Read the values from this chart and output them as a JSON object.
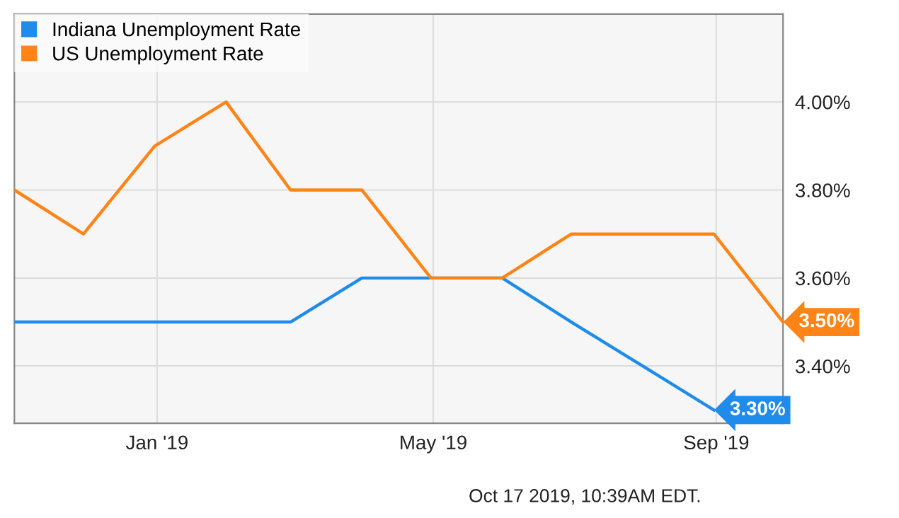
{
  "chart_data": {
    "type": "line",
    "x": [
      "2018-10-31",
      "2018-11-30",
      "2018-12-31",
      "2019-01-31",
      "2019-02-28",
      "2019-03-31",
      "2019-04-30",
      "2019-05-31",
      "2019-06-30",
      "2019-07-31",
      "2019-08-31",
      "2019-09-30"
    ],
    "series": [
      {
        "name": "Indiana Unemployment Rate",
        "color": "#1f8ceb",
        "values": [
          3.5,
          3.5,
          3.5,
          3.5,
          3.5,
          3.6,
          3.6,
          3.6,
          3.5,
          3.4,
          3.3,
          null
        ],
        "value_labels": [
          null,
          null,
          null,
          null,
          null,
          null,
          null,
          null,
          null,
          null,
          "3.30%",
          null
        ]
      },
      {
        "name": "US Unemployment Rate",
        "color": "#ff8417",
        "values": [
          3.8,
          3.7,
          3.9,
          4.0,
          3.8,
          3.8,
          3.6,
          3.6,
          3.7,
          3.7,
          3.7,
          3.5
        ],
        "value_labels": [
          null,
          null,
          null,
          null,
          null,
          null,
          null,
          null,
          null,
          null,
          null,
          "3.50%"
        ]
      }
    ],
    "xlim": [
      "2018-10-31",
      "2019-09-30"
    ],
    "xticks": [
      {
        "value": "2019-01-01",
        "label": "Jan '19"
      },
      {
        "value": "2019-05-01",
        "label": "May '19"
      },
      {
        "value": "2019-09-01",
        "label": "Sep '19"
      }
    ],
    "ylim": [
      3.27,
      4.2
    ],
    "yticks": [
      {
        "value": 3.4,
        "label": "3.40%"
      },
      {
        "value": 3.6,
        "label": "3.60%"
      },
      {
        "value": 3.8,
        "label": "3.80%"
      },
      {
        "value": 4.0,
        "label": "4.00%"
      }
    ],
    "grid": true,
    "legend": "top left",
    "marker": "none",
    "line_style": "solid",
    "annotations": [
      "Oct 17 2019, 10:39AM EDT."
    ]
  }
}
